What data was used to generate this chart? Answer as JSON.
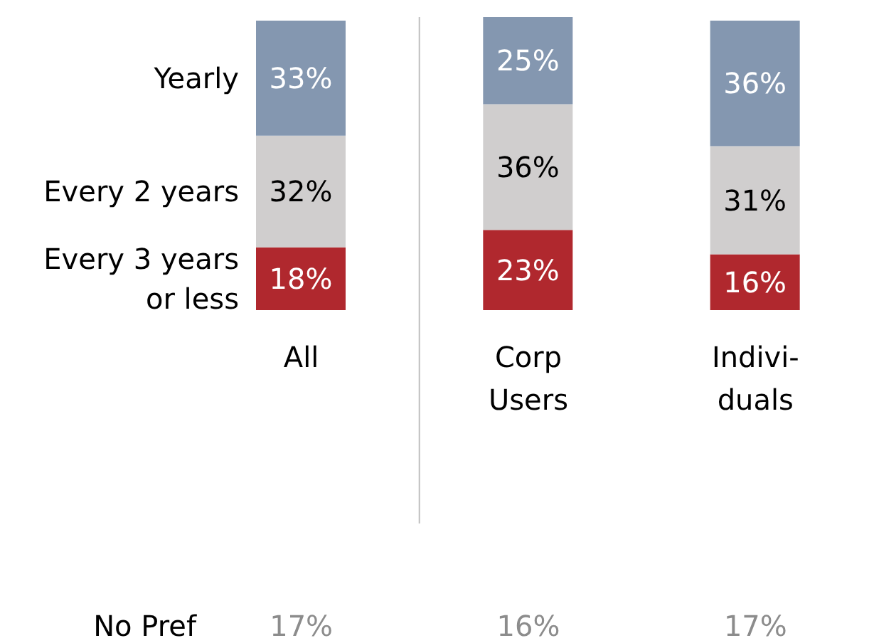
{
  "chart_data": {
    "type": "bar",
    "stacked": true,
    "categories": [
      "All",
      "Corp Users",
      "Indivi-duals"
    ],
    "series": [
      {
        "name": "Every 3 years or less",
        "color": "#b0282e",
        "values": [
          18,
          23,
          16
        ],
        "value_labels": [
          "18%",
          "23%",
          "16%"
        ]
      },
      {
        "name": "Every 2 years",
        "color": "#d0cece",
        "values": [
          32,
          36,
          31
        ],
        "value_labels": [
          "32%",
          "36%",
          "31%"
        ]
      },
      {
        "name": "Yearly",
        "color": "#8497b0",
        "values": [
          33,
          25,
          36
        ],
        "value_labels": [
          "33%",
          "25%",
          "36%"
        ]
      }
    ],
    "annotations": [
      "No Pref",
      "17%",
      "16%",
      "17%"
    ],
    "grid": false,
    "legend": false
  }
}
